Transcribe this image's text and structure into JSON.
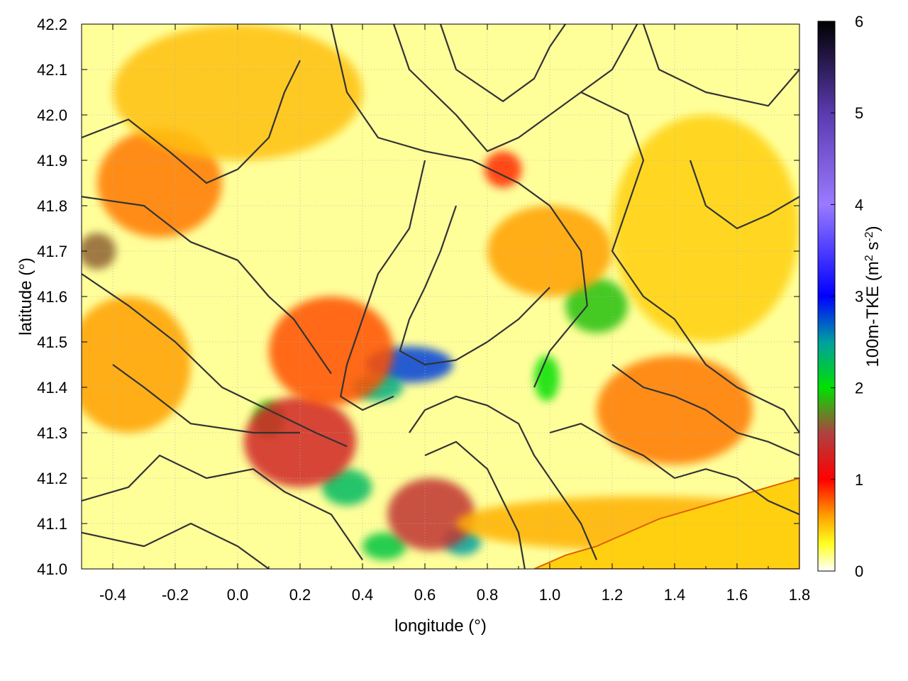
{
  "chart_data": {
    "type": "heatmap",
    "xlabel": "longitude (°)",
    "ylabel": "latitude (°)",
    "xlim": [
      -0.5,
      1.8
    ],
    "ylim": [
      41.0,
      42.2
    ],
    "xticks": [
      -0.4,
      -0.2,
      0.0,
      0.2,
      0.4,
      0.6,
      0.8,
      1.0,
      1.2,
      1.4,
      1.6,
      1.8
    ],
    "xtick_labels": [
      "-0.4",
      "-0.2",
      "0.0",
      "0.2",
      "0.4",
      "0.6",
      "0.8",
      "1.0",
      "1.2",
      "1.4",
      "1.6",
      "1.8"
    ],
    "yticks": [
      41.0,
      41.1,
      41.2,
      41.3,
      41.4,
      41.5,
      41.6,
      41.7,
      41.8,
      41.9,
      42.0,
      42.1,
      42.2
    ],
    "ytick_labels": [
      "41.0",
      "41.1",
      "41.2",
      "41.3",
      "41.4",
      "41.5",
      "41.6",
      "41.7",
      "41.8",
      "41.9",
      "42.0",
      "42.1",
      "42.2"
    ],
    "grid": true,
    "colorbar": {
      "label": "100m-TKE (m² s⁻²)",
      "label_main": "100m-TKE (m",
      "label_sup1": "2",
      "label_mid": " s",
      "label_sup2": "-2",
      "label_end": ")",
      "range": [
        0,
        6
      ],
      "ticks": [
        0,
        1,
        2,
        3,
        4,
        5,
        6
      ],
      "tick_labels": [
        "0",
        "1",
        "2",
        "3",
        "4",
        "5",
        "6"
      ],
      "color_stops": [
        {
          "value": 0.0,
          "color": "#ffffff"
        },
        {
          "value": 0.3,
          "color": "#ffff20"
        },
        {
          "value": 0.6,
          "color": "#ffa000"
        },
        {
          "value": 1.0,
          "color": "#ff0000"
        },
        {
          "value": 1.5,
          "color": "#b04040"
        },
        {
          "value": 2.0,
          "color": "#00e000"
        },
        {
          "value": 2.5,
          "color": "#00a0a0"
        },
        {
          "value": 3.0,
          "color": "#0000ff"
        },
        {
          "value": 4.0,
          "color": "#9a7aff"
        },
        {
          "value": 5.0,
          "color": "#5a3ab0"
        },
        {
          "value": 6.0,
          "color": "#000000"
        }
      ]
    },
    "tke_features": [
      {
        "lon": 0.55,
        "lat": 41.45,
        "value": 2.8,
        "slon": 0.14,
        "slat": 0.04
      },
      {
        "lon": 0.45,
        "lat": 41.4,
        "value": 2.4,
        "slon": 0.08,
        "slat": 0.03
      },
      {
        "lon": 0.72,
        "lat": 41.06,
        "value": 2.5,
        "slon": 0.06,
        "slat": 0.03
      },
      {
        "lon": 0.47,
        "lat": 41.05,
        "value": 2.2,
        "slon": 0.07,
        "slat": 0.03
      },
      {
        "lon": 0.35,
        "lat": 41.18,
        "value": 2.3,
        "slon": 0.08,
        "slat": 0.04
      },
      {
        "lon": 1.15,
        "lat": 41.58,
        "value": 1.9,
        "slon": 0.1,
        "slat": 0.06
      },
      {
        "lon": 0.99,
        "lat": 41.42,
        "value": 2.0,
        "slon": 0.04,
        "slat": 0.05
      },
      {
        "lon": -0.45,
        "lat": 41.7,
        "value": 1.6,
        "slon": 0.06,
        "slat": 0.04
      },
      {
        "lon": 0.1,
        "lat": 41.33,
        "value": 1.9,
        "slon": 0.05,
        "slat": 0.04
      },
      {
        "lon": 0.2,
        "lat": 41.28,
        "value": 1.3,
        "slon": 0.18,
        "slat": 0.1
      },
      {
        "lon": 0.62,
        "lat": 41.12,
        "value": 1.4,
        "slon": 0.14,
        "slat": 0.08
      },
      {
        "lon": 0.3,
        "lat": 41.48,
        "value": 0.8,
        "slon": 0.2,
        "slat": 0.12
      },
      {
        "lon": -0.25,
        "lat": 41.85,
        "value": 0.7,
        "slon": 0.2,
        "slat": 0.12
      },
      {
        "lon": 0.85,
        "lat": 41.88,
        "value": 0.9,
        "slon": 0.06,
        "slat": 0.04
      },
      {
        "lon": 1.4,
        "lat": 41.35,
        "value": 0.7,
        "slon": 0.25,
        "slat": 0.12
      },
      {
        "lon": -0.35,
        "lat": 41.45,
        "value": 0.6,
        "slon": 0.2,
        "slat": 0.15
      },
      {
        "lon": 0.0,
        "lat": 42.05,
        "value": 0.5,
        "slon": 0.4,
        "slat": 0.15
      },
      {
        "lon": 1.3,
        "lat": 41.1,
        "value": 0.55,
        "slon": 0.6,
        "slat": 0.06
      },
      {
        "lon": 1.0,
        "lat": 41.7,
        "value": 0.6,
        "slon": 0.2,
        "slat": 0.1
      },
      {
        "lon": 1.5,
        "lat": 41.75,
        "value": 0.45,
        "slon": 0.3,
        "slat": 0.25
      }
    ],
    "contours": [
      [
        [
          -0.5,
          41.95
        ],
        [
          -0.35,
          41.99
        ],
        [
          -0.22,
          41.92
        ],
        [
          -0.1,
          41.85
        ],
        [
          0.0,
          41.88
        ],
        [
          0.1,
          41.95
        ],
        [
          0.15,
          42.05
        ],
        [
          0.2,
          42.12
        ]
      ],
      [
        [
          -0.5,
          41.82
        ],
        [
          -0.3,
          41.8
        ],
        [
          -0.15,
          41.72
        ],
        [
          0.0,
          41.68
        ],
        [
          0.1,
          41.6
        ],
        [
          0.18,
          41.55
        ],
        [
          0.3,
          41.43
        ]
      ],
      [
        [
          -0.5,
          41.65
        ],
        [
          -0.35,
          41.58
        ],
        [
          -0.2,
          41.5
        ],
        [
          -0.05,
          41.4
        ],
        [
          0.1,
          41.35
        ],
        [
          0.25,
          41.3
        ],
        [
          0.35,
          41.27
        ]
      ],
      [
        [
          -0.4,
          41.45
        ],
        [
          -0.3,
          41.4
        ],
        [
          -0.15,
          41.32
        ],
        [
          0.05,
          41.3
        ],
        [
          0.2,
          41.3
        ]
      ],
      [
        [
          -0.5,
          41.15
        ],
        [
          -0.35,
          41.18
        ],
        [
          -0.25,
          41.25
        ],
        [
          -0.1,
          41.2
        ],
        [
          0.05,
          41.22
        ],
        [
          0.15,
          41.17
        ],
        [
          0.3,
          41.12
        ],
        [
          0.4,
          41.02
        ]
      ],
      [
        [
          -0.5,
          41.08
        ],
        [
          -0.3,
          41.05
        ],
        [
          -0.15,
          41.1
        ],
        [
          0.0,
          41.05
        ],
        [
          0.1,
          41.0
        ]
      ],
      [
        [
          0.3,
          42.2
        ],
        [
          0.35,
          42.05
        ],
        [
          0.45,
          41.95
        ],
        [
          0.6,
          41.92
        ],
        [
          0.75,
          41.9
        ],
        [
          0.9,
          41.85
        ],
        [
          1.0,
          41.8
        ],
        [
          1.1,
          41.7
        ],
        [
          1.12,
          41.58
        ],
        [
          1.0,
          41.48
        ],
        [
          0.95,
          41.4
        ]
      ],
      [
        [
          0.5,
          42.2
        ],
        [
          0.55,
          42.1
        ],
        [
          0.7,
          42.0
        ],
        [
          0.8,
          41.92
        ],
        [
          0.9,
          41.95
        ],
        [
          1.0,
          42.0
        ],
        [
          1.1,
          42.05
        ],
        [
          1.2,
          42.1
        ],
        [
          1.28,
          42.2
        ]
      ],
      [
        [
          0.65,
          42.2
        ],
        [
          0.7,
          42.1
        ],
        [
          0.85,
          42.03
        ],
        [
          0.95,
          42.08
        ],
        [
          1.0,
          42.15
        ],
        [
          1.05,
          42.2
        ]
      ],
      [
        [
          1.3,
          42.2
        ],
        [
          1.35,
          42.1
        ],
        [
          1.5,
          42.05
        ],
        [
          1.7,
          42.02
        ],
        [
          1.8,
          42.1
        ]
      ],
      [
        [
          1.1,
          42.05
        ],
        [
          1.25,
          42.0
        ],
        [
          1.3,
          41.9
        ],
        [
          1.25,
          41.8
        ],
        [
          1.2,
          41.7
        ],
        [
          1.3,
          41.6
        ],
        [
          1.4,
          41.55
        ],
        [
          1.5,
          41.45
        ],
        [
          1.6,
          41.4
        ],
        [
          1.75,
          41.35
        ],
        [
          1.8,
          41.3
        ]
      ],
      [
        [
          1.45,
          41.9
        ],
        [
          1.5,
          41.8
        ],
        [
          1.6,
          41.75
        ],
        [
          1.7,
          41.78
        ],
        [
          1.8,
          41.82
        ]
      ],
      [
        [
          0.6,
          41.9
        ],
        [
          0.55,
          41.75
        ],
        [
          0.45,
          41.65
        ],
        [
          0.4,
          41.55
        ],
        [
          0.35,
          41.45
        ],
        [
          0.33,
          41.38
        ],
        [
          0.4,
          41.35
        ],
        [
          0.5,
          41.38
        ]
      ],
      [
        [
          0.7,
          41.8
        ],
        [
          0.65,
          41.7
        ],
        [
          0.6,
          41.62
        ],
        [
          0.55,
          41.55
        ],
        [
          0.52,
          41.48
        ],
        [
          0.6,
          41.45
        ],
        [
          0.7,
          41.46
        ],
        [
          0.8,
          41.5
        ],
        [
          0.9,
          41.55
        ],
        [
          1.0,
          41.62
        ]
      ],
      [
        [
          0.55,
          41.3
        ],
        [
          0.6,
          41.35
        ],
        [
          0.7,
          41.38
        ],
        [
          0.8,
          41.36
        ],
        [
          0.9,
          41.32
        ],
        [
          0.95,
          41.25
        ],
        [
          1.0,
          41.2
        ],
        [
          1.05,
          41.15
        ],
        [
          1.1,
          41.1
        ],
        [
          1.15,
          41.02
        ]
      ],
      [
        [
          0.6,
          41.25
        ],
        [
          0.7,
          41.28
        ],
        [
          0.8,
          41.22
        ],
        [
          0.85,
          41.15
        ],
        [
          0.9,
          41.08
        ],
        [
          0.92,
          41.0
        ]
      ],
      [
        [
          1.0,
          41.3
        ],
        [
          1.1,
          41.32
        ],
        [
          1.2,
          41.28
        ],
        [
          1.3,
          41.25
        ],
        [
          1.4,
          41.2
        ],
        [
          1.5,
          41.22
        ],
        [
          1.6,
          41.2
        ],
        [
          1.7,
          41.15
        ],
        [
          1.8,
          41.12
        ]
      ],
      [
        [
          1.2,
          41.45
        ],
        [
          1.3,
          41.4
        ],
        [
          1.4,
          41.38
        ],
        [
          1.5,
          41.35
        ],
        [
          1.6,
          41.3
        ],
        [
          1.7,
          41.28
        ],
        [
          1.8,
          41.25
        ]
      ]
    ],
    "coast": [
      [
        0.95,
        41.0
      ],
      [
        1.05,
        41.03
      ],
      [
        1.15,
        41.05
      ],
      [
        1.25,
        41.08
      ],
      [
        1.35,
        41.11
      ],
      [
        1.45,
        41.13
      ],
      [
        1.55,
        41.15
      ],
      [
        1.65,
        41.17
      ],
      [
        1.75,
        41.19
      ],
      [
        1.8,
        41.2
      ],
      [
        1.8,
        41.0
      ]
    ]
  }
}
